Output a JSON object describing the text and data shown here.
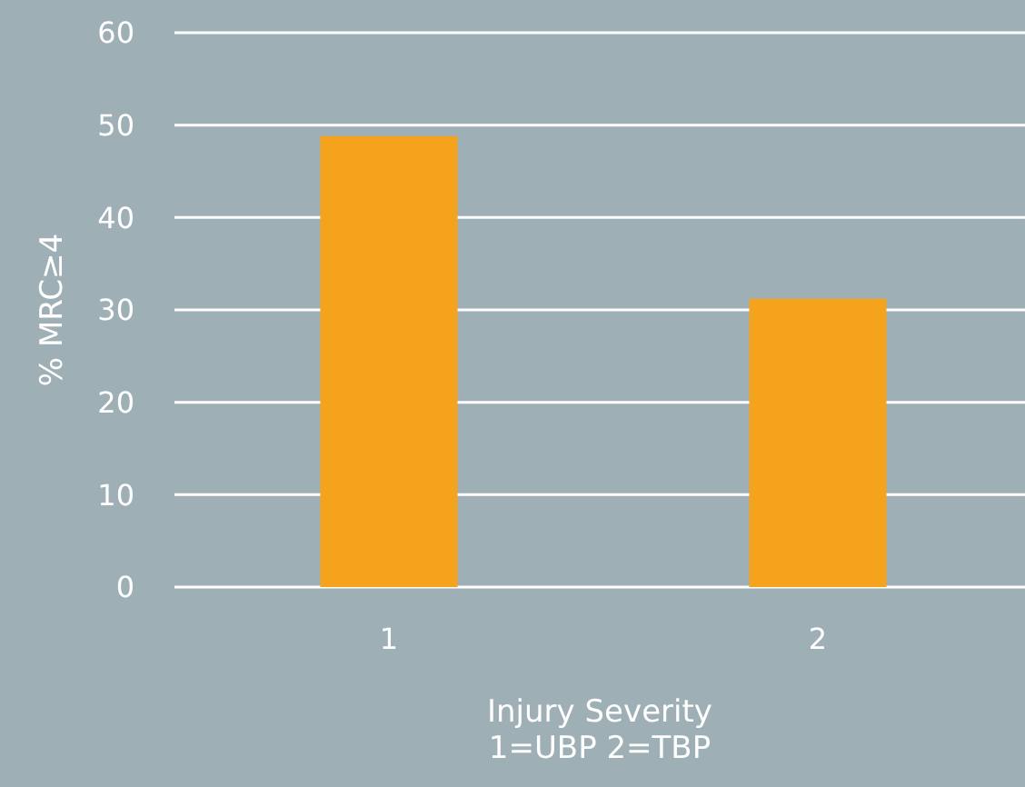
{
  "chart_data": {
    "type": "bar",
    "xlabel": "Injury Severity\n1=UBP 2=TBP",
    "ylabel": "% MRC≥4",
    "categories": [
      "1",
      "2"
    ],
    "values": [
      48.8,
      31.2
    ],
    "color": "#f5a21d",
    "ylim": [
      0,
      60
    ],
    "yticks": [
      0,
      10,
      20,
      30,
      40,
      50,
      60
    ],
    "grid": "y"
  }
}
